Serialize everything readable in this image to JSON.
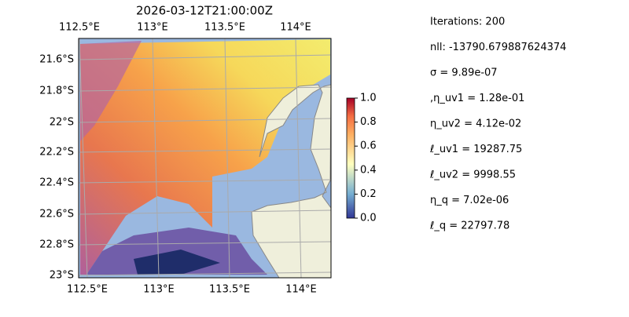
{
  "title": "2026-03-12T21:00:00Z",
  "map": {
    "top_labels": [
      "112.5°E",
      "113°E",
      "113.5°E",
      "114°E"
    ],
    "bottom_labels": [
      "112.5°E",
      "113°E",
      "113.5°E",
      "114°E"
    ],
    "left_labels": [
      "21.6°S",
      "21.8°S",
      "22°S",
      "22.2°S",
      "22.4°S",
      "22.6°S",
      "22.8°S",
      "23°S"
    ]
  },
  "colorbar": {
    "lim": [
      0,
      1
    ],
    "ticks": [
      {
        "value": 0,
        "label": "0.0"
      },
      {
        "value": 0.2,
        "label": "0.2"
      },
      {
        "value": 0.4,
        "label": "0.4"
      },
      {
        "value": 0.6,
        "label": "0.6"
      },
      {
        "value": 0.8,
        "label": "0.8"
      },
      {
        "value": 1,
        "label": "1.0"
      }
    ]
  },
  "stats": [
    "Iterations: 200",
    "nll: -13790.679887624374",
    "σ = 9.89e-07",
    ",η_uv1 = 1.28e-01",
    "η_uv2 = 4.12e-02",
    "ℓ_uv1 = 19287.75",
    "ℓ_uv2 = 9998.55",
    "η_q = 7.02e-06",
    "ℓ_q = 22797.78"
  ]
}
